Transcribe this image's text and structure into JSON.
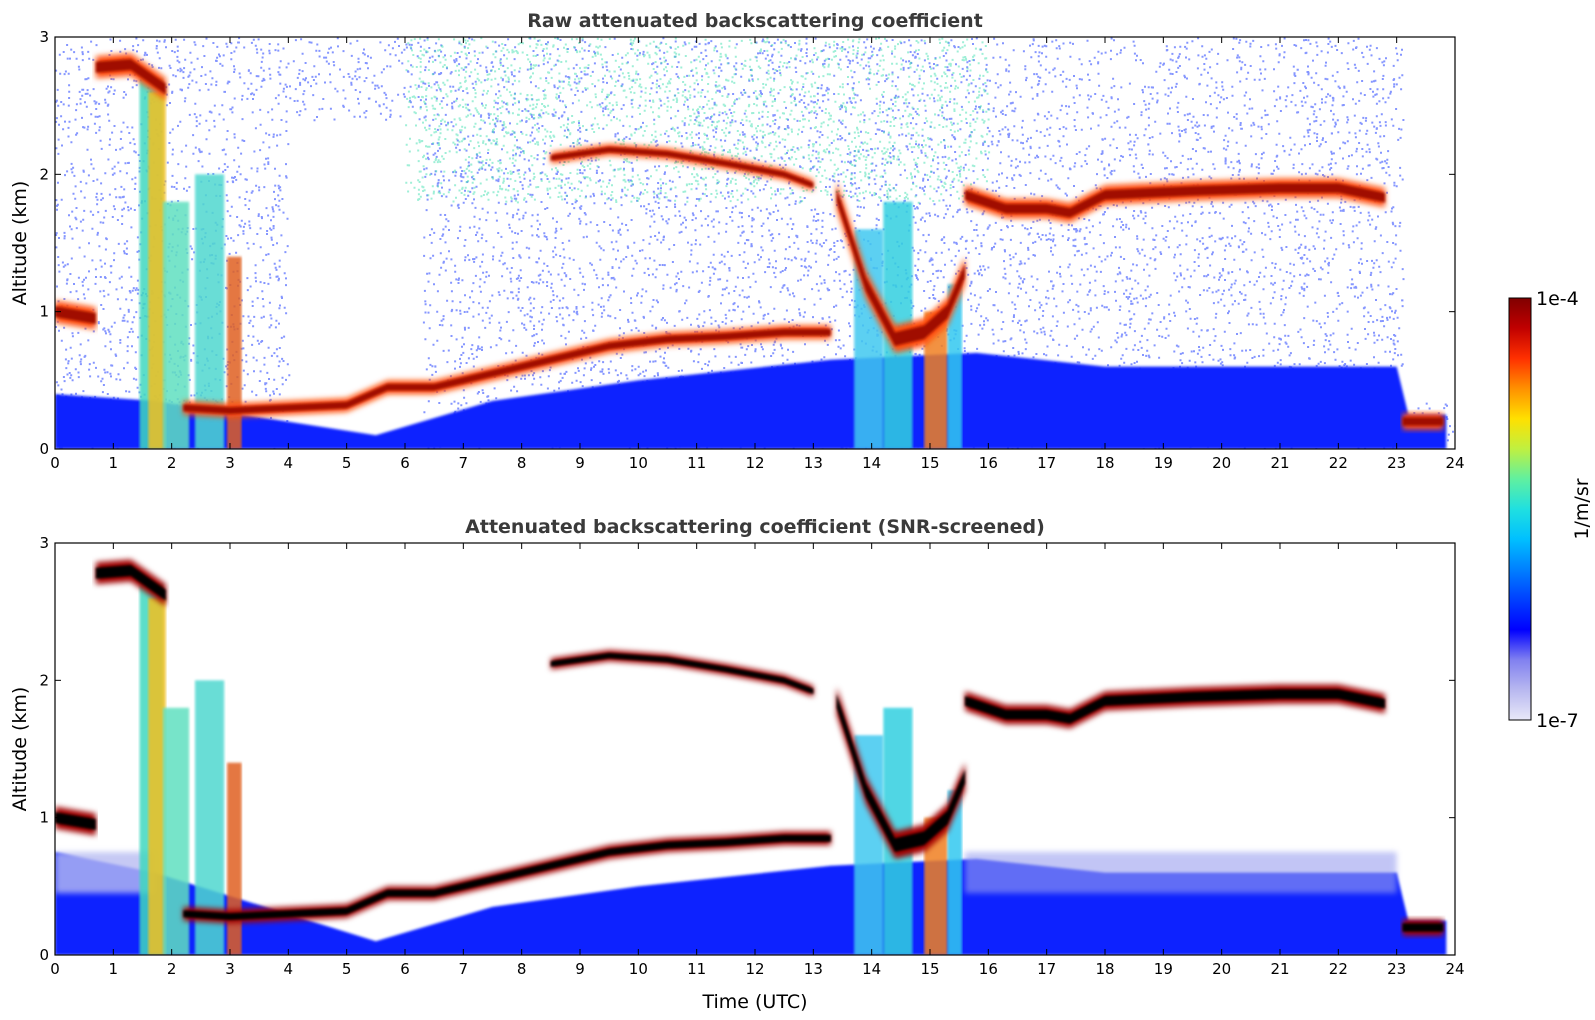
{
  "chart_data": [
    {
      "type": "heatmap",
      "title": "Raw attenuated backscattering coefficient",
      "xlabel": "",
      "ylabel": "Altitude (km)",
      "xlim": [
        0,
        24
      ],
      "ylim": [
        0,
        3
      ],
      "x_ticks": [
        "0",
        "1",
        "2",
        "3",
        "4",
        "5",
        "6",
        "7",
        "8",
        "9",
        "10",
        "11",
        "12",
        "13",
        "14",
        "15",
        "16",
        "17",
        "18",
        "19",
        "20",
        "21",
        "22",
        "23",
        "24"
      ],
      "y_ticks": [
        "0",
        "1",
        "2",
        "3"
      ],
      "grid": false,
      "layers": [
        {
          "name": "boundary layer aerosol top",
          "x": [
            0.0,
            0.8,
            1.8,
            2.2,
            3.0,
            4.0,
            5.0,
            5.7,
            6.5,
            7.5,
            8.5,
            9.5,
            10.5,
            11.5,
            12.5,
            13.3
          ],
          "y": [
            0.4,
            0.35,
            0.35,
            0.3,
            0.28,
            0.3,
            0.32,
            0.45,
            0.45,
            0.55,
            0.65,
            0.75,
            0.8,
            0.82,
            0.85,
            0.85
          ]
        },
        {
          "name": "cloud layer",
          "x": [
            0.0,
            0.7,
            0.7,
            1.5,
            1.9,
            8.5,
            9.5,
            10.5,
            11.5,
            12.5,
            13.0,
            15.6,
            16.5,
            17.5,
            18.5,
            20.0,
            21.0,
            22.0,
            22.8
          ],
          "y": [
            1.0,
            0.95,
            2.75,
            2.75,
            2.6,
            2.12,
            2.18,
            2.15,
            2.08,
            2.0,
            1.92,
            1.85,
            1.75,
            1.8,
            1.88,
            1.9,
            1.92,
            1.9,
            1.83
          ]
        },
        {
          "name": "low cloud after 23 UTC",
          "x": [
            23.1,
            23.8
          ],
          "y": [
            0.2,
            0.2
          ]
        }
      ]
    },
    {
      "type": "heatmap",
      "title": "Attenuated backscattering coefficient (SNR-screened)",
      "xlabel": "Time (UTC)",
      "ylabel": "Altitude (km)",
      "xlim": [
        0,
        24
      ],
      "ylim": [
        0,
        3
      ],
      "x_ticks": [
        "0",
        "1",
        "2",
        "3",
        "4",
        "5",
        "6",
        "7",
        "8",
        "9",
        "10",
        "11",
        "12",
        "13",
        "14",
        "15",
        "16",
        "17",
        "18",
        "19",
        "20",
        "21",
        "22",
        "23",
        "24"
      ],
      "y_ticks": [
        "0",
        "1",
        "2",
        "3"
      ],
      "grid": false,
      "note_values_above_1e-4_shown": "black"
    }
  ],
  "colorbar": {
    "label": "1/m/sr",
    "max_label": "1e-4",
    "min_label": "1e-7",
    "scale": "log",
    "range": [
      1e-07,
      0.0001
    ],
    "colors": [
      "#e8e8f8",
      "#b8b8f0",
      "#8080f0",
      "#0000ff",
      "#0040ff",
      "#0080ff",
      "#00c0ff",
      "#20e0e0",
      "#60f0a0",
      "#c0f040",
      "#ffe000",
      "#ff9000",
      "#ff3000",
      "#c00000",
      "#800000"
    ],
    "saturated_color": "#000000"
  }
}
